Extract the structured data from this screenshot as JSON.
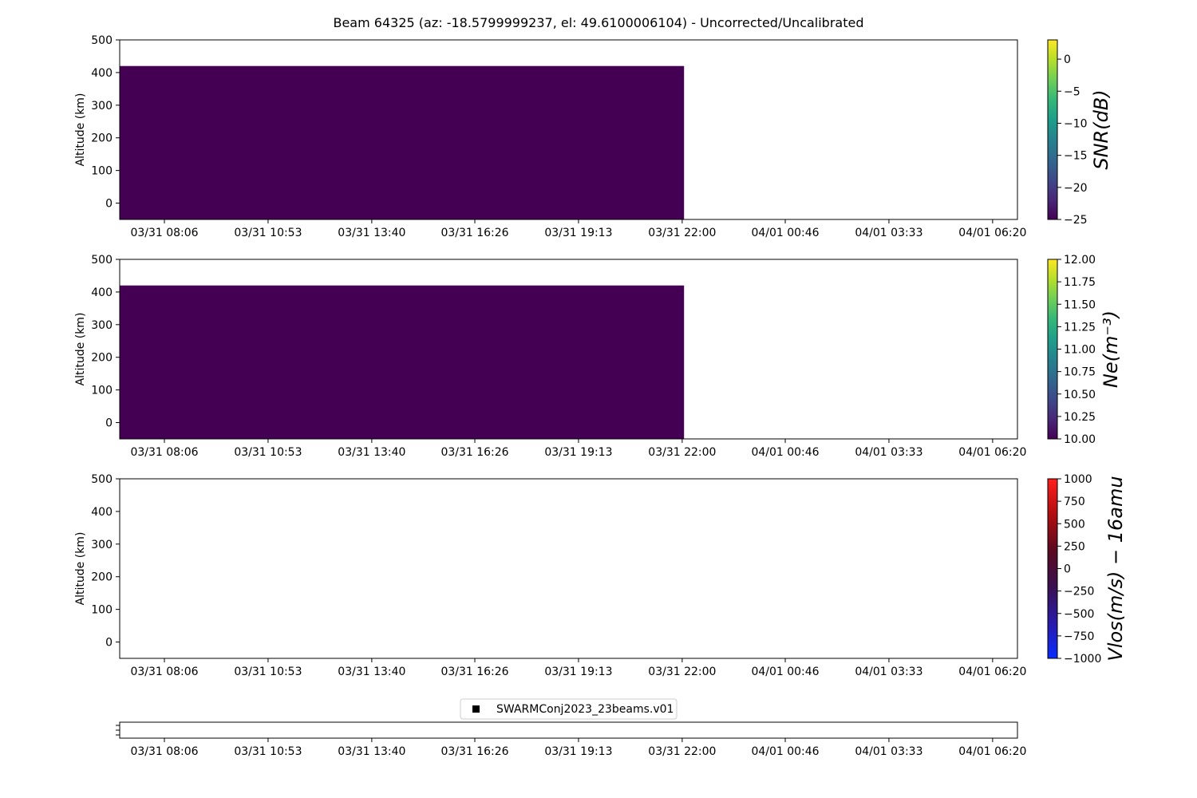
{
  "chart_data": {
    "title": "Beam 64325 (az: -18.5799999237, el: 49.6100006104) - Uncorrected/Uncalibrated",
    "type": "heatmap",
    "x_tick_labels": [
      "03/31 08:06",
      "03/31 10:53",
      "03/31 13:40",
      "03/31 16:26",
      "03/31 19:13",
      "03/31 22:00",
      "04/01 00:46",
      "04/01 03:33",
      "04/01 06:20"
    ],
    "x_tick_hours": [
      8.1,
      10.8833,
      13.6667,
      16.4333,
      19.2167,
      22.0,
      24.7667,
      27.55,
      30.3333
    ],
    "x_range_hours": [
      6.9,
      31.0
    ],
    "panels": [
      {
        "ylabel": "Altitude (km)",
        "ylim": [
          -50,
          500
        ],
        "y_ticks": [
          0,
          100,
          200,
          300,
          400,
          500
        ],
        "colorbar": {
          "label": "SNR(dB)",
          "colormap": "viridis",
          "range": [
            -25,
            3
          ],
          "ticks": [
            0,
            -5,
            -10,
            -15,
            -20,
            -25
          ],
          "tick_labels": [
            "0",
            "−5",
            "−10",
            "−15",
            "−20",
            "−25"
          ]
        },
        "data_block": {
          "x_start_hours": 6.9,
          "x_end_hours": 22.05,
          "alt_min": -50,
          "alt_max": 420,
          "value": -25,
          "color": "#440154"
        }
      },
      {
        "ylabel": "Altitude (km)",
        "ylim": [
          -50,
          500
        ],
        "y_ticks": [
          0,
          100,
          200,
          300,
          400,
          500
        ],
        "colorbar": {
          "label": "Ne(m⁻³)",
          "colormap": "viridis",
          "range": [
            10.0,
            12.0
          ],
          "ticks": [
            12.0,
            11.75,
            11.5,
            11.25,
            11.0,
            10.75,
            10.5,
            10.25,
            10.0
          ],
          "tick_labels": [
            "12.00",
            "11.75",
            "11.50",
            "11.25",
            "11.00",
            "10.75",
            "10.50",
            "10.25",
            "10.00"
          ]
        },
        "data_block": {
          "x_start_hours": 6.9,
          "x_end_hours": 22.05,
          "alt_min": -50,
          "alt_max": 420,
          "value": 10.0,
          "color": "#440154"
        }
      },
      {
        "ylabel": "Altitude (km)",
        "ylim": [
          -50,
          500
        ],
        "y_ticks": [
          0,
          100,
          200,
          300,
          400,
          500
        ],
        "colorbar": {
          "label": "Vlos(m/s) − 16amu",
          "colormap": "blue-red",
          "range": [
            -1000,
            1000
          ],
          "ticks": [
            1000,
            750,
            500,
            250,
            0,
            -250,
            -500,
            -750,
            -1000
          ],
          "tick_labels": [
            "1000",
            "750",
            "500",
            "250",
            "0",
            "−250",
            "−500",
            "−750",
            "−1000"
          ]
        },
        "data_block": null
      }
    ],
    "timeline": {
      "legend": "SWARMConj2023_23beams.v01",
      "legend_placement": "top-center"
    }
  },
  "colors": {
    "viridis": [
      "#440154",
      "#482878",
      "#3e4989",
      "#31688e",
      "#26828e",
      "#1f9e89",
      "#35b779",
      "#6ece58",
      "#b5de2b",
      "#fde725"
    ],
    "bluered": [
      "#0a2cff",
      "#2a1aa8",
      "#3a1050",
      "#5a0a20",
      "#b00e10",
      "#ff1e1e"
    ]
  }
}
